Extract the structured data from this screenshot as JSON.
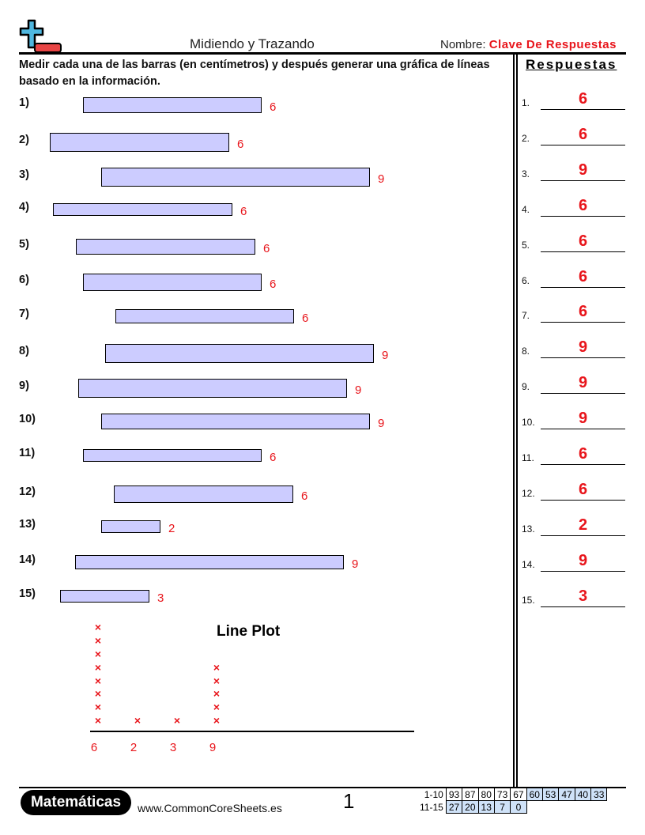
{
  "header": {
    "title": "Midiendo y Trazando",
    "name_label": "Nombre:",
    "name_value": "Clave De Respuestas"
  },
  "instructions": "Medir cada una de las barras (en centímetros) y después generar una gráfica de líneas basado en la información.",
  "questions": [
    {
      "label": "1)",
      "answer": "6"
    },
    {
      "label": "2)",
      "answer": "6"
    },
    {
      "label": "3)",
      "answer": "9"
    },
    {
      "label": "4)",
      "answer": "6"
    },
    {
      "label": "5)",
      "answer": "6"
    },
    {
      "label": "6)",
      "answer": "6"
    },
    {
      "label": "7)",
      "answer": "6"
    },
    {
      "label": "8)",
      "answer": "9"
    },
    {
      "label": "9)",
      "answer": "9"
    },
    {
      "label": "10)",
      "answer": "9"
    },
    {
      "label": "11)",
      "answer": "6"
    },
    {
      "label": "12)",
      "answer": "6"
    },
    {
      "label": "13)",
      "answer": "2"
    },
    {
      "label": "14)",
      "answer": "9"
    },
    {
      "label": "15)",
      "answer": "3"
    }
  ],
  "answers_panel": {
    "heading": "Respuestas",
    "items": [
      {
        "num": "1.",
        "value": "6"
      },
      {
        "num": "2.",
        "value": "6"
      },
      {
        "num": "3.",
        "value": "9"
      },
      {
        "num": "4.",
        "value": "6"
      },
      {
        "num": "5.",
        "value": "6"
      },
      {
        "num": "6.",
        "value": "6"
      },
      {
        "num": "7.",
        "value": "6"
      },
      {
        "num": "8.",
        "value": "9"
      },
      {
        "num": "9.",
        "value": "9"
      },
      {
        "num": "10.",
        "value": "9"
      },
      {
        "num": "11.",
        "value": "6"
      },
      {
        "num": "12.",
        "value": "6"
      },
      {
        "num": "13.",
        "value": "2"
      },
      {
        "num": "14.",
        "value": "9"
      },
      {
        "num": "15.",
        "value": "3"
      }
    ]
  },
  "chart_data": {
    "type": "line-plot",
    "title": "Line Plot",
    "categories": [
      "6",
      "2",
      "3",
      "9"
    ],
    "counts": [
      8,
      1,
      1,
      5
    ],
    "marker": "×",
    "marker_color": "#e8151b"
  },
  "footer": {
    "brand": "Matemáticas",
    "site": "www.CommonCoreSheets.es",
    "page": "1",
    "score_rows": [
      {
        "label": "1-10",
        "values": [
          "93",
          "87",
          "80",
          "73",
          "67",
          "60",
          "53",
          "47",
          "40",
          "33"
        ]
      },
      {
        "label": "11-15",
        "values": [
          "27",
          "20",
          "13",
          "7",
          "0"
        ]
      }
    ]
  },
  "colors": {
    "accent": "#e8151b",
    "bar_fill": "#ccccff",
    "score_highlight": "#cfe2f8"
  }
}
